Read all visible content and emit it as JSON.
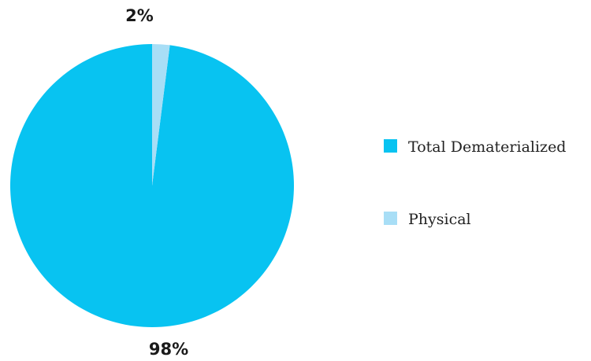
{
  "chart_data": {
    "type": "pie",
    "title": "",
    "slices": [
      {
        "label": "Total Dematerialized",
        "value": 98,
        "value_label": "98%",
        "color": "#08c3f1"
      },
      {
        "label": "Physical",
        "value": 2,
        "value_label": "2%",
        "color": "#a8def6"
      }
    ],
    "legend_position": "right",
    "start_angle_deg": 0,
    "direction": "counterclockwise"
  }
}
